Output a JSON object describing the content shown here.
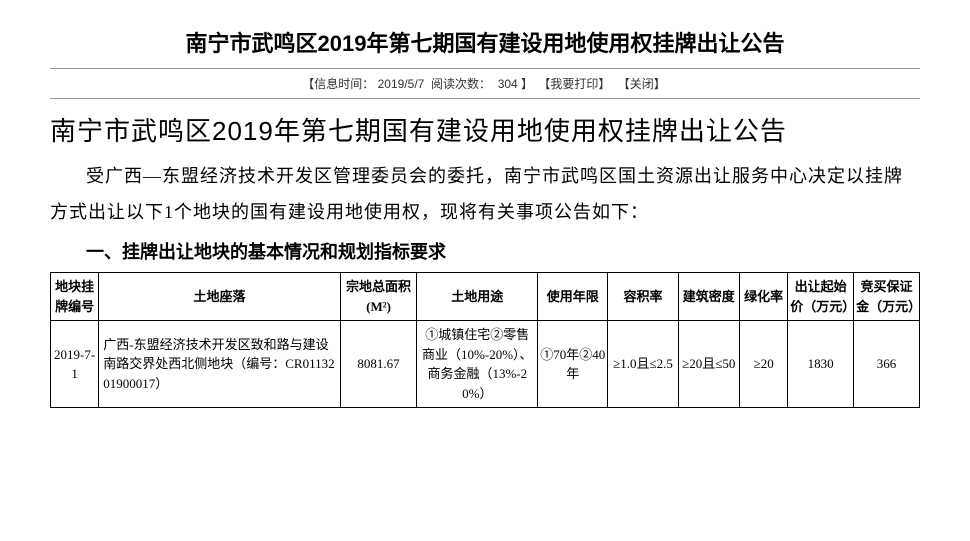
{
  "page_title": "南宁市武鸣区2019年第七期国有建设用地使用权挂牌出让公告",
  "meta": {
    "time_label": "信息时间：",
    "time_value": "2019/5/7",
    "views_label": "阅读次数：",
    "views_value": "304",
    "print_action": "【我要打印】",
    "close_action": "【关闭】"
  },
  "subtitle": "南宁市武鸣区2019年第七期国有建设用地使用权挂牌出让公告",
  "intro": "受广西—东盟经济技术开发区管理委员会的委托，南宁市武鸣区国土资源出让服务中心决定以挂牌方式出让以下1个地块的国有建设用地使用权，现将有关事项公告如下：",
  "section1": "一、挂牌出让地块的基本情况和规划指标要求",
  "table": {
    "headers": [
      "地块挂牌编号",
      "土地座落",
      "宗地总面积(M²)",
      "土地用途",
      "使用年限",
      "容积率",
      "建筑密度",
      "绿化率",
      "出让起始价（万元）",
      "竞买保证金（万元）"
    ],
    "row": {
      "id": "2019-7-1",
      "location": "广西-东盟经济技术开发区致和路与建设南路交界处西北侧地块（编号：CR0113201900017）",
      "area": "8081.67",
      "use": "①城镇住宅②零售商业（10%-20%）、商务金融（13%-20%）",
      "term": "①70年②40年",
      "far": "≥1.0且≤2.5",
      "density": "≥20且≤50",
      "green": "≥20",
      "start_price": "1830",
      "deposit": "366"
    }
  }
}
